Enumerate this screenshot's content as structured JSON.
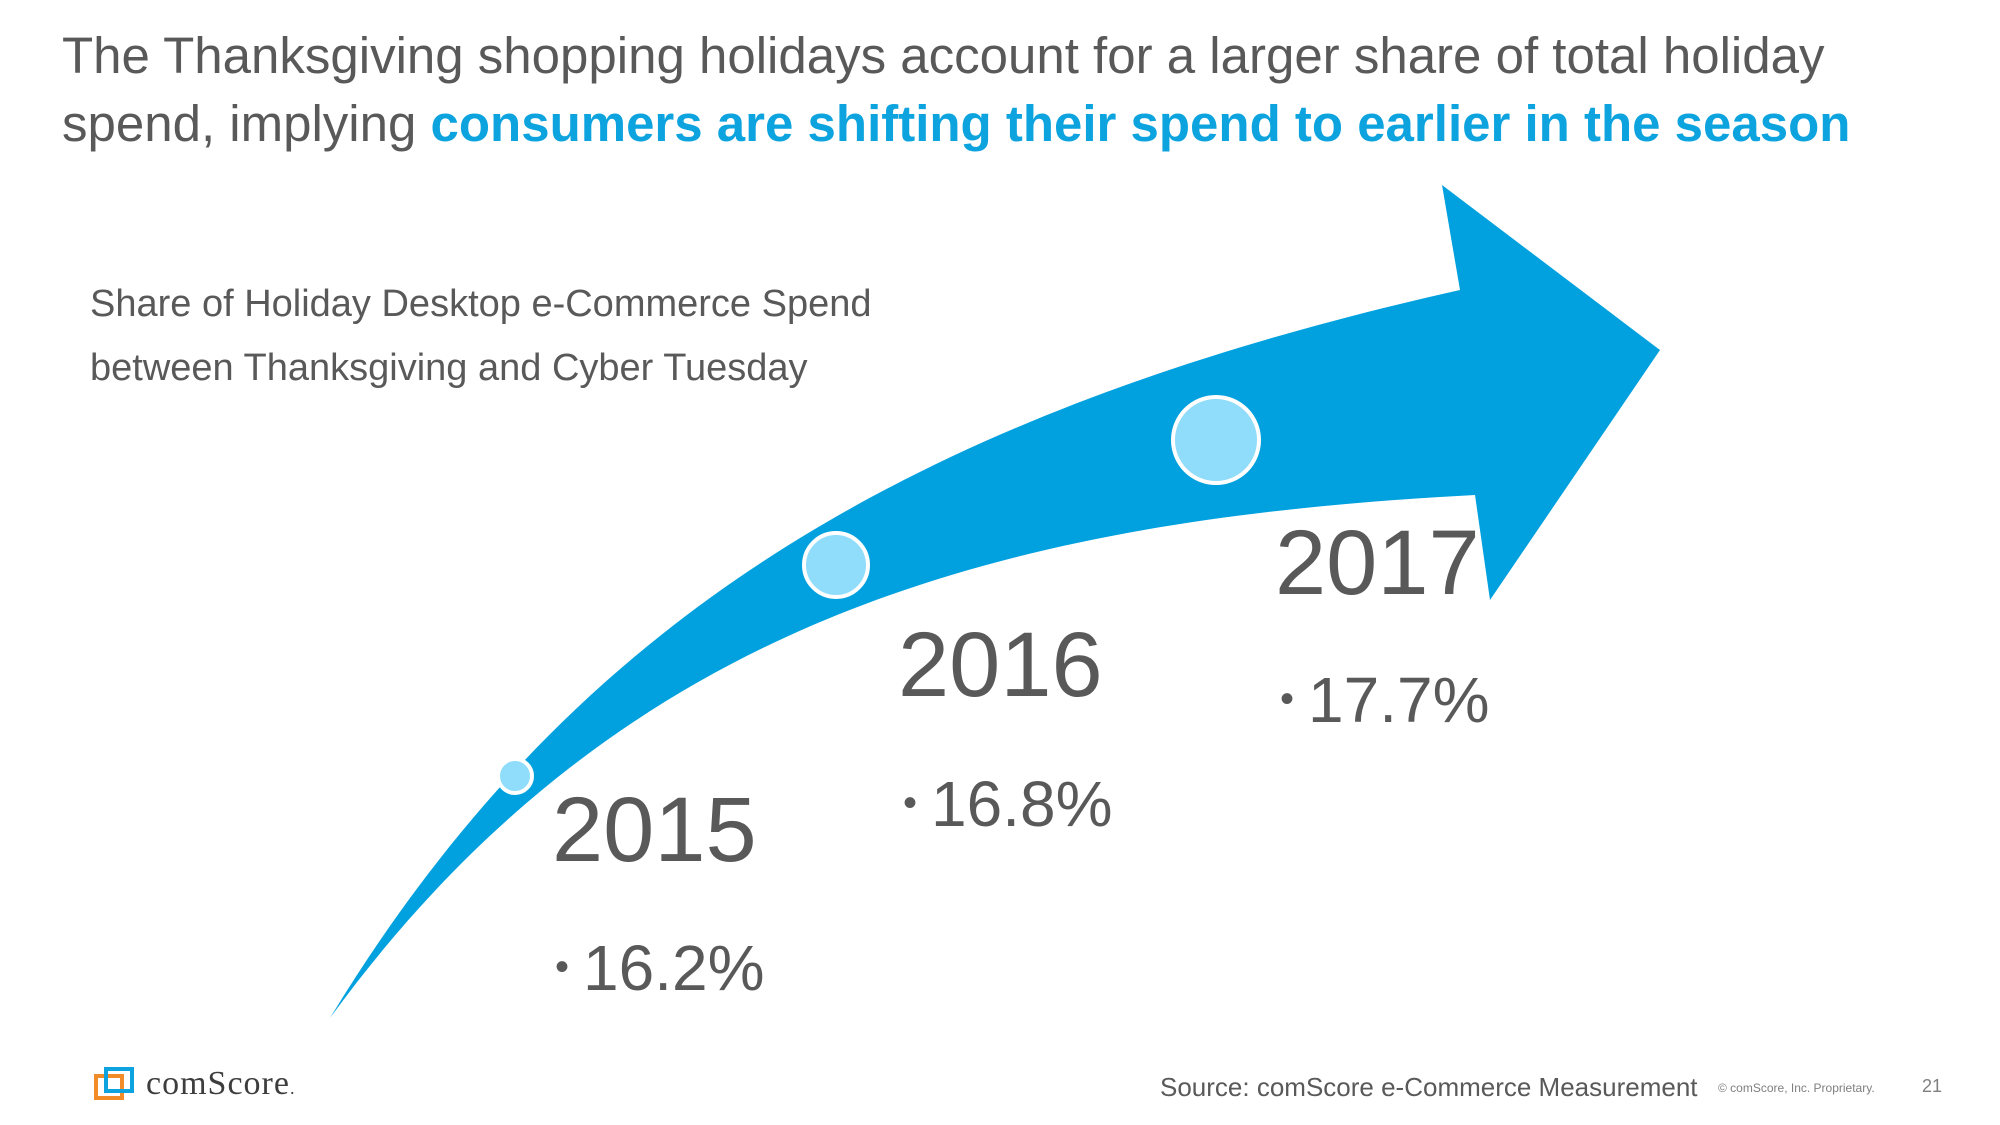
{
  "headline": {
    "text_part1": "The Thanksgiving shopping holidays account for a larger share of total holiday spend, implying ",
    "text_highlight": "consumers are shifting their spend to earlier in the season"
  },
  "subtitle": {
    "line1": "Share of Holiday Desktop e-Commerce Spend",
    "line2": "between Thanksgiving and Cyber Tuesday"
  },
  "milestones": [
    {
      "year": "2015",
      "value": "16.2%"
    },
    {
      "year": "2016",
      "value": "16.8%"
    },
    {
      "year": "2017",
      "value": "17.7%"
    }
  ],
  "bullet_glyph": "•",
  "footer": {
    "logo_text": "comScore",
    "logo_suffix": ".",
    "source": "Source: comScore e-Commerce Measurement",
    "copyright": "© comScore, Inc. Proprietary.",
    "page_number": "21"
  },
  "colors": {
    "arrow": "#00a1de",
    "marker_fill": "#8fdcfb",
    "highlight": "#0da3de",
    "text": "#595959"
  }
}
